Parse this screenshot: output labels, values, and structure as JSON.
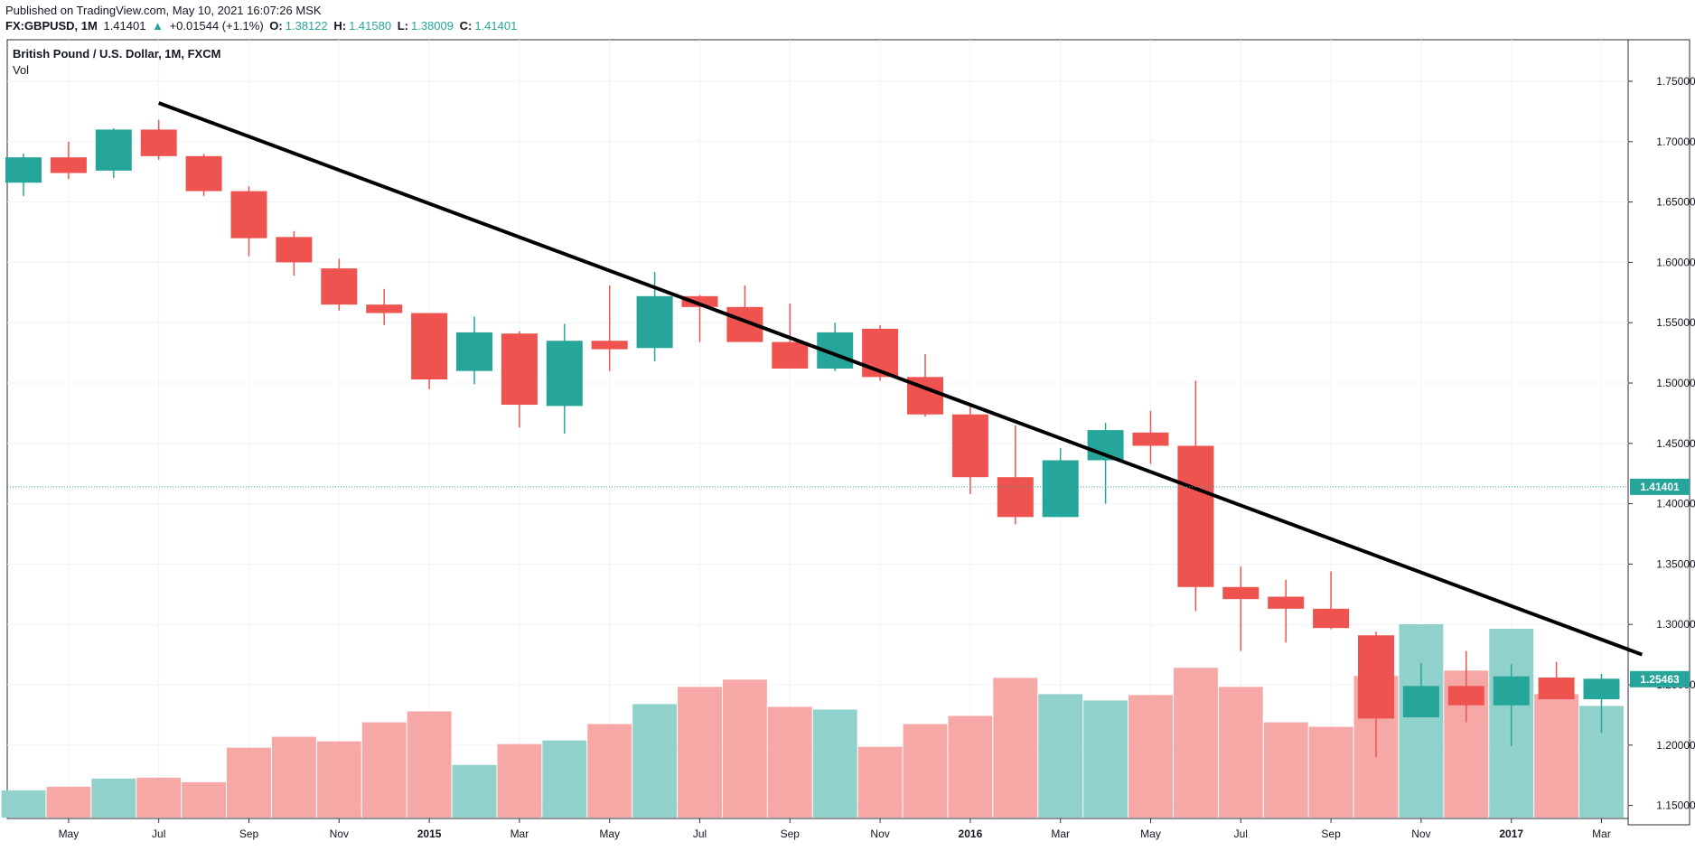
{
  "header": {
    "published": "Published on TradingView.com, May 10, 2021 16:07:26 MSK",
    "symbol": "FX:GBPUSD, 1M",
    "last": "1.41401",
    "change_arrow": "▲",
    "change": "+0.01544 (+1.1%)",
    "o_label": "O:",
    "o_value": "1.38122",
    "h_label": "H:",
    "h_value": "1.41580",
    "l_label": "L:",
    "l_value": "1.38009",
    "c_label": "C:",
    "c_value": "1.41401"
  },
  "pane": {
    "title": "British Pound / U.S. Dollar, 1M, FXCM",
    "indicator": "Vol",
    "current_price_label": "1.41401",
    "last_price_label": "1.25463"
  },
  "colors": {
    "up": "#26a69a",
    "down": "#ef5350",
    "up_volume": "#91d1cb",
    "down_volume": "#f6a8a6",
    "trendline": "#000000",
    "grid": "#f0f3fa"
  },
  "chart_data": {
    "type": "candlestick",
    "title": "British Pound / U.S. Dollar, 1M, FXCM",
    "y_axis": {
      "position": "right",
      "min": 1.13,
      "max": 1.78,
      "ticks": [
        "1.75000",
        "1.70000",
        "1.65000",
        "1.60000",
        "1.55000",
        "1.50000",
        "1.45000",
        "1.40000",
        "1.35000",
        "1.30000",
        "1.25000",
        "1.20000",
        "1.15000"
      ]
    },
    "x_ticks": [
      {
        "index": 1,
        "label": "May",
        "bold": false
      },
      {
        "index": 3,
        "label": "Jul",
        "bold": false
      },
      {
        "index": 5,
        "label": "Sep",
        "bold": false
      },
      {
        "index": 7,
        "label": "Nov",
        "bold": false
      },
      {
        "index": 9,
        "label": "2015",
        "bold": true
      },
      {
        "index": 11,
        "label": "Mar",
        "bold": false
      },
      {
        "index": 13,
        "label": "May",
        "bold": false
      },
      {
        "index": 15,
        "label": "Jul",
        "bold": false
      },
      {
        "index": 17,
        "label": "Sep",
        "bold": false
      },
      {
        "index": 19,
        "label": "Nov",
        "bold": false
      },
      {
        "index": 21,
        "label": "2016",
        "bold": true
      },
      {
        "index": 23,
        "label": "Mar",
        "bold": false
      },
      {
        "index": 25,
        "label": "May",
        "bold": false
      },
      {
        "index": 27,
        "label": "Jul",
        "bold": false
      },
      {
        "index": 29,
        "label": "Sep",
        "bold": false
      },
      {
        "index": 31,
        "label": "Nov",
        "bold": false
      },
      {
        "index": 33,
        "label": "2017",
        "bold": true
      },
      {
        "index": 35,
        "label": "Mar",
        "bold": false
      }
    ],
    "grid": true,
    "candles": [
      {
        "o": 1.666,
        "h": 1.69,
        "l": 1.655,
        "c": 1.687
      },
      {
        "o": 1.687,
        "h": 1.7,
        "l": 1.669,
        "c": 1.674
      },
      {
        "o": 1.676,
        "h": 1.711,
        "l": 1.67,
        "c": 1.71
      },
      {
        "o": 1.71,
        "h": 1.718,
        "l": 1.685,
        "c": 1.688
      },
      {
        "o": 1.688,
        "h": 1.69,
        "l": 1.655,
        "c": 1.659
      },
      {
        "o": 1.659,
        "h": 1.663,
        "l": 1.605,
        "c": 1.62
      },
      {
        "o": 1.621,
        "h": 1.626,
        "l": 1.589,
        "c": 1.6
      },
      {
        "o": 1.595,
        "h": 1.603,
        "l": 1.56,
        "c": 1.565
      },
      {
        "o": 1.565,
        "h": 1.578,
        "l": 1.548,
        "c": 1.558
      },
      {
        "o": 1.558,
        "h": 1.558,
        "l": 1.495,
        "c": 1.503
      },
      {
        "o": 1.51,
        "h": 1.555,
        "l": 1.499,
        "c": 1.542
      },
      {
        "o": 1.541,
        "h": 1.543,
        "l": 1.463,
        "c": 1.482
      },
      {
        "o": 1.481,
        "h": 1.549,
        "l": 1.458,
        "c": 1.535
      },
      {
        "o": 1.535,
        "h": 1.581,
        "l": 1.51,
        "c": 1.528
      },
      {
        "o": 1.529,
        "h": 1.592,
        "l": 1.518,
        "c": 1.572
      },
      {
        "o": 1.572,
        "h": 1.573,
        "l": 1.534,
        "c": 1.563
      },
      {
        "o": 1.563,
        "h": 1.581,
        "l": 1.534,
        "c": 1.534
      },
      {
        "o": 1.534,
        "h": 1.566,
        "l": 1.512,
        "c": 1.512
      },
      {
        "o": 1.512,
        "h": 1.55,
        "l": 1.51,
        "c": 1.542
      },
      {
        "o": 1.545,
        "h": 1.548,
        "l": 1.502,
        "c": 1.505
      },
      {
        "o": 1.505,
        "h": 1.524,
        "l": 1.472,
        "c": 1.474
      },
      {
        "o": 1.474,
        "h": 1.482,
        "l": 1.408,
        "c": 1.422
      },
      {
        "o": 1.422,
        "h": 1.465,
        "l": 1.383,
        "c": 1.389
      },
      {
        "o": 1.389,
        "h": 1.446,
        "l": 1.389,
        "c": 1.436
      },
      {
        "o": 1.436,
        "h": 1.467,
        "l": 1.4,
        "c": 1.461
      },
      {
        "o": 1.459,
        "h": 1.477,
        "l": 1.433,
        "c": 1.448
      },
      {
        "o": 1.448,
        "h": 1.502,
        "l": 1.311,
        "c": 1.331
      },
      {
        "o": 1.331,
        "h": 1.348,
        "l": 1.278,
        "c": 1.321
      },
      {
        "o": 1.323,
        "h": 1.337,
        "l": 1.285,
        "c": 1.313
      },
      {
        "o": 1.313,
        "h": 1.344,
        "l": 1.296,
        "c": 1.297
      },
      {
        "o": 1.291,
        "h": 1.294,
        "l": 1.19,
        "c": 1.222
      },
      {
        "o": 1.223,
        "h": 1.268,
        "l": 1.223,
        "c": 1.249
      },
      {
        "o": 1.249,
        "h": 1.278,
        "l": 1.219,
        "c": 1.233
      },
      {
        "o": 1.233,
        "h": 1.267,
        "l": 1.199,
        "c": 1.257
      },
      {
        "o": 1.256,
        "h": 1.269,
        "l": 1.238,
        "c": 1.238
      },
      {
        "o": 1.238,
        "h": 1.259,
        "l": 1.21,
        "c": 1.255
      }
    ],
    "volume": [
      3,
      3.4,
      4.3,
      4.4,
      3.9,
      7.7,
      8.9,
      8.4,
      10.5,
      11.7,
      5.8,
      8.1,
      8.5,
      10.3,
      12.5,
      14.4,
      15.2,
      12.2,
      11.9,
      7.8,
      10.3,
      11.2,
      15.4,
      13.6,
      12.9,
      13.5,
      16.5,
      14.4,
      10.5,
      10.0,
      15.6,
      21.3,
      16.2,
      20.8,
      13.6,
      12.3
    ],
    "volume_max": 21.3,
    "trendline": {
      "from": {
        "index": 3,
        "price": 1.732
      },
      "to": {
        "index": 35.9,
        "price": 1.275
      }
    },
    "current_price": 1.41401,
    "last_price": 1.25463
  }
}
